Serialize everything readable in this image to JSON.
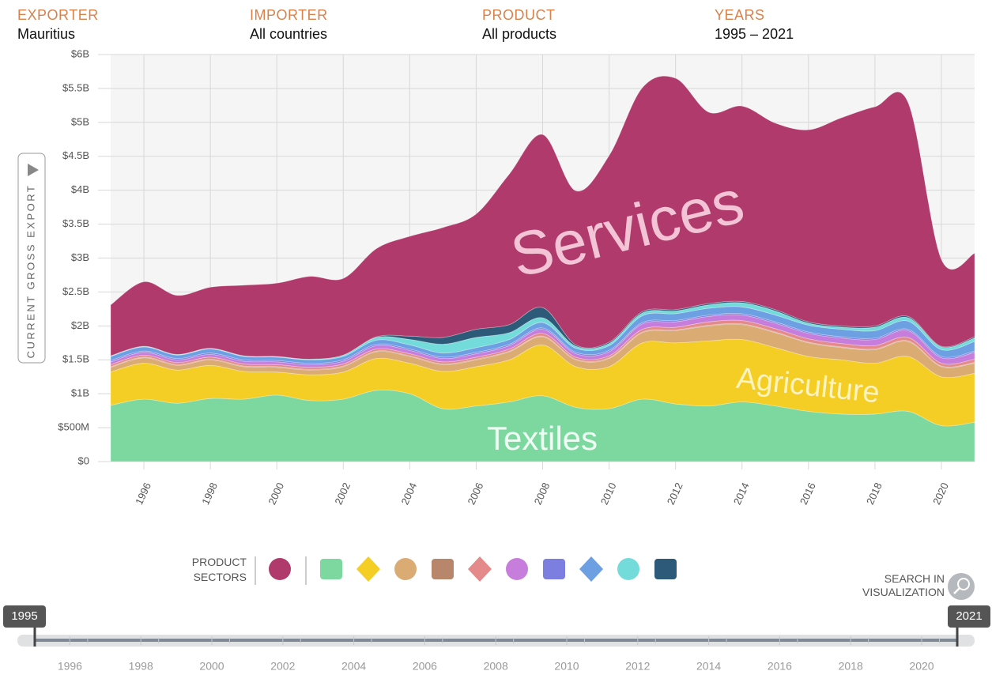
{
  "header": {
    "fields": [
      {
        "label": "EXPORTER",
        "value": "Mauritius"
      },
      {
        "label": "IMPORTER",
        "value": "All countries"
      },
      {
        "label": "PRODUCT",
        "value": "All products"
      },
      {
        "label": "YEARS",
        "value": "1995 – 2021"
      }
    ]
  },
  "chart_data": {
    "type": "stacked-area",
    "y_label": "CURRENT GROSS EXPORT",
    "x": [
      1995,
      1996,
      1997,
      1998,
      1999,
      2000,
      2001,
      2002,
      2003,
      2004,
      2005,
      2006,
      2007,
      2008,
      2009,
      2010,
      2011,
      2012,
      2013,
      2014,
      2015,
      2016,
      2017,
      2018,
      2019,
      2020,
      2021
    ],
    "xlim": [
      1995,
      2021
    ],
    "xticks": [
      1996,
      1998,
      2000,
      2002,
      2004,
      2006,
      2008,
      2010,
      2012,
      2014,
      2016,
      2018,
      2020
    ],
    "ylim": [
      0,
      6
    ],
    "yticks": [
      {
        "value": 0,
        "label": "$0"
      },
      {
        "value": 0.5,
        "label": "$500M"
      },
      {
        "value": 1,
        "label": "$1B"
      },
      {
        "value": 1.5,
        "label": "$1.5B"
      },
      {
        "value": 2,
        "label": "$2B"
      },
      {
        "value": 2.5,
        "label": "$2.5B"
      },
      {
        "value": 3,
        "label": "$3B"
      },
      {
        "value": 3.5,
        "label": "$3.5B"
      },
      {
        "value": 4,
        "label": "$4B"
      },
      {
        "value": 4.5,
        "label": "$4.5B"
      },
      {
        "value": 5,
        "label": "$5B"
      },
      {
        "value": 5.5,
        "label": "$5.5B"
      },
      {
        "value": 6,
        "label": "$6B"
      }
    ],
    "grid": true,
    "series": [
      {
        "name": "Textiles",
        "color": "#7dd8a0",
        "values": [
          0.83,
          0.92,
          0.86,
          0.93,
          0.92,
          0.98,
          0.9,
          0.92,
          1.05,
          1.0,
          0.78,
          0.82,
          0.88,
          0.97,
          0.8,
          0.78,
          0.92,
          0.85,
          0.82,
          0.88,
          0.82,
          0.74,
          0.7,
          0.7,
          0.74,
          0.53,
          0.58
        ]
      },
      {
        "name": "Agriculture",
        "color": "#f4cd25",
        "values": [
          0.49,
          0.53,
          0.49,
          0.49,
          0.41,
          0.34,
          0.38,
          0.4,
          0.47,
          0.45,
          0.55,
          0.58,
          0.62,
          0.75,
          0.6,
          0.62,
          0.83,
          0.9,
          0.96,
          0.92,
          0.86,
          0.81,
          0.8,
          0.75,
          0.81,
          0.72,
          0.72
        ]
      },
      {
        "color": "#dbab74",
        "values": [
          0.07,
          0.08,
          0.07,
          0.08,
          0.07,
          0.07,
          0.07,
          0.08,
          0.1,
          0.1,
          0.1,
          0.1,
          0.12,
          0.12,
          0.1,
          0.12,
          0.15,
          0.18,
          0.22,
          0.22,
          0.22,
          0.2,
          0.18,
          0.2,
          0.22,
          0.15,
          0.15
        ]
      },
      {
        "color": "#b8866a",
        "values": [
          0.01,
          0.01,
          0.01,
          0.01,
          0.01,
          0.01,
          0.01,
          0.01,
          0.01,
          0.01,
          0.01,
          0.01,
          0.01,
          0.01,
          0.01,
          0.01,
          0.01,
          0.01,
          0.01,
          0.01,
          0.01,
          0.01,
          0.01,
          0.01,
          0.01,
          0.01,
          0.01
        ]
      },
      {
        "color": "#e58a8a",
        "values": [
          0.03,
          0.03,
          0.03,
          0.03,
          0.03,
          0.03,
          0.03,
          0.03,
          0.03,
          0.03,
          0.03,
          0.03,
          0.03,
          0.04,
          0.03,
          0.03,
          0.04,
          0.04,
          0.05,
          0.05,
          0.05,
          0.05,
          0.05,
          0.05,
          0.05,
          0.04,
          0.05
        ]
      },
      {
        "color": "#c77ddb",
        "values": [
          0.04,
          0.04,
          0.04,
          0.04,
          0.04,
          0.04,
          0.04,
          0.04,
          0.05,
          0.05,
          0.05,
          0.05,
          0.05,
          0.06,
          0.05,
          0.06,
          0.08,
          0.08,
          0.08,
          0.08,
          0.08,
          0.08,
          0.08,
          0.09,
          0.1,
          0.08,
          0.1
        ]
      },
      {
        "color": "#7c7ee0",
        "values": [
          0.02,
          0.02,
          0.02,
          0.02,
          0.02,
          0.02,
          0.02,
          0.02,
          0.02,
          0.02,
          0.02,
          0.02,
          0.02,
          0.02,
          0.02,
          0.02,
          0.02,
          0.02,
          0.02,
          0.02,
          0.02,
          0.02,
          0.02,
          0.02,
          0.02,
          0.02,
          0.02
        ]
      },
      {
        "color": "#6d9fe3",
        "values": [
          0.06,
          0.06,
          0.05,
          0.06,
          0.05,
          0.05,
          0.05,
          0.05,
          0.06,
          0.06,
          0.06,
          0.07,
          0.07,
          0.08,
          0.06,
          0.07,
          0.1,
          0.1,
          0.1,
          0.1,
          0.1,
          0.1,
          0.11,
          0.11,
          0.12,
          0.1,
          0.14
        ]
      },
      {
        "color": "#73dbd9",
        "values": [
          0.01,
          0.01,
          0.01,
          0.01,
          0.01,
          0.01,
          0.01,
          0.02,
          0.04,
          0.08,
          0.13,
          0.15,
          0.1,
          0.07,
          0.03,
          0.03,
          0.04,
          0.04,
          0.05,
          0.06,
          0.06,
          0.03,
          0.03,
          0.05,
          0.05,
          0.04,
          0.05
        ]
      },
      {
        "color": "#2c5a78",
        "values": [
          0,
          0,
          0,
          0,
          0,
          0,
          0,
          0,
          0.01,
          0.05,
          0.1,
          0.12,
          0.12,
          0.15,
          0.02,
          0.02,
          0.02,
          0.02,
          0.02,
          0.02,
          0.02,
          0.02,
          0.02,
          0.02,
          0.02,
          0.01,
          0.02
        ]
      },
      {
        "name": "Services",
        "color": "#b03a6b",
        "values": [
          0.75,
          0.95,
          0.87,
          0.9,
          1.04,
          1.08,
          1.22,
          1.13,
          1.3,
          1.47,
          1.62,
          1.7,
          2.22,
          2.55,
          2.27,
          2.75,
          3.3,
          3.41,
          2.82,
          2.88,
          2.75,
          2.83,
          3.07,
          3.23,
          3.15,
          1.28,
          1.23
        ]
      }
    ]
  },
  "sectors_label": "PRODUCT SECTORS",
  "search_label": "SEARCH IN VISUALIZATION",
  "timeline": {
    "start": "1995",
    "end": "2021",
    "ticks": [
      1996,
      1998,
      2000,
      2002,
      2004,
      2006,
      2008,
      2010,
      2012,
      2014,
      2016,
      2018,
      2020
    ]
  }
}
